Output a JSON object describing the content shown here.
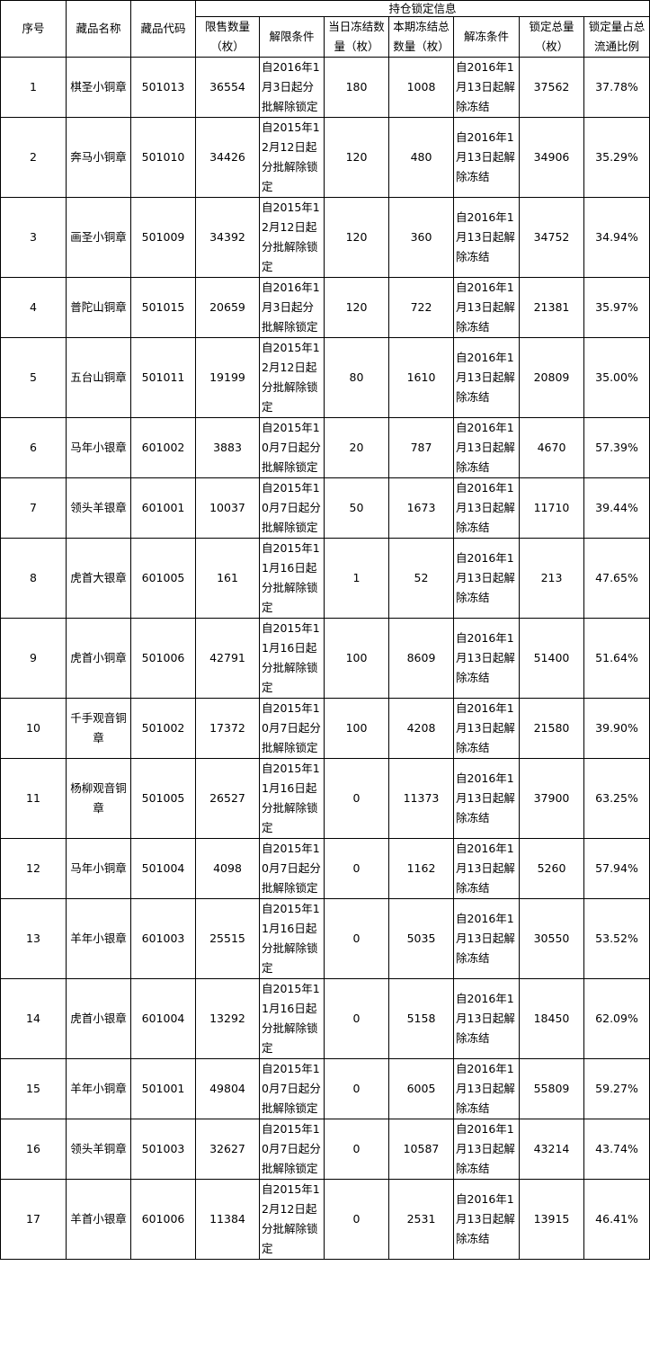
{
  "header": {
    "index": "序号",
    "name": "藏品名称",
    "code": "藏品代码",
    "group": "持仓锁定信息",
    "restricted_qty": "限售数量（枚）",
    "release_condition": "解限条件",
    "day_frozen": "当日冻结数量（枚）",
    "period_frozen": "本期冻结总数量（枚）",
    "unfreeze_condition": "解冻条件",
    "locked_total": "锁定总量（枚）",
    "locked_ratio": "锁定量占总流通比例"
  },
  "rows": [
    {
      "index": "1",
      "name": "棋圣小铜章",
      "code": "501013",
      "restricted_qty": "36554",
      "release_condition": "自2016年1月3日起分批解除锁定",
      "day_frozen": "180",
      "period_frozen": "1008",
      "unfreeze_condition": "自2016年1月13日起解除冻结",
      "locked_total": "37562",
      "locked_ratio": "37.78%"
    },
    {
      "index": "2",
      "name": "奔马小铜章",
      "code": "501010",
      "restricted_qty": "34426",
      "release_condition": "自2015年12月12日起分批解除锁定",
      "day_frozen": "120",
      "period_frozen": "480",
      "unfreeze_condition": "自2016年1月13日起解除冻结",
      "locked_total": "34906",
      "locked_ratio": "35.29%"
    },
    {
      "index": "3",
      "name": "画圣小铜章",
      "code": "501009",
      "restricted_qty": "34392",
      "release_condition": "自2015年12月12日起分批解除锁定",
      "day_frozen": "120",
      "period_frozen": "360",
      "unfreeze_condition": "自2016年1月13日起解除冻结",
      "locked_total": "34752",
      "locked_ratio": "34.94%"
    },
    {
      "index": "4",
      "name": "普陀山铜章",
      "code": "501015",
      "restricted_qty": "20659",
      "release_condition": "自2016年1月3日起分批解除锁定",
      "day_frozen": "120",
      "period_frozen": "722",
      "unfreeze_condition": "自2016年1月13日起解除冻结",
      "locked_total": "21381",
      "locked_ratio": "35.97%"
    },
    {
      "index": "5",
      "name": "五台山铜章",
      "code": "501011",
      "restricted_qty": "19199",
      "release_condition": "自2015年12月12日起分批解除锁定",
      "day_frozen": "80",
      "period_frozen": "1610",
      "unfreeze_condition": "自2016年1月13日起解除冻结",
      "locked_total": "20809",
      "locked_ratio": "35.00%"
    },
    {
      "index": "6",
      "name": "马年小银章",
      "code": "601002",
      "restricted_qty": "3883",
      "release_condition": "自2015年10月7日起分批解除锁定",
      "day_frozen": "20",
      "period_frozen": "787",
      "unfreeze_condition": "自2016年1月13日起解除冻结",
      "locked_total": "4670",
      "locked_ratio": "57.39%"
    },
    {
      "index": "7",
      "name": "领头羊银章",
      "code": "601001",
      "restricted_qty": "10037",
      "release_condition": "自2015年10月7日起分批解除锁定",
      "day_frozen": "50",
      "period_frozen": "1673",
      "unfreeze_condition": "自2016年1月13日起解除冻结",
      "locked_total": "11710",
      "locked_ratio": "39.44%"
    },
    {
      "index": "8",
      "name": "虎首大银章",
      "code": "601005",
      "restricted_qty": "161",
      "release_condition": "自2015年11月16日起分批解除锁定",
      "day_frozen": "1",
      "period_frozen": "52",
      "unfreeze_condition": "自2016年1月13日起解除冻结",
      "locked_total": "213",
      "locked_ratio": "47.65%"
    },
    {
      "index": "9",
      "name": "虎首小铜章",
      "code": "501006",
      "restricted_qty": "42791",
      "release_condition": "自2015年11月16日起分批解除锁定",
      "day_frozen": "100",
      "period_frozen": "8609",
      "unfreeze_condition": "自2016年1月13日起解除冻结",
      "locked_total": "51400",
      "locked_ratio": "51.64%"
    },
    {
      "index": "10",
      "name": "千手观音铜章",
      "code": "501002",
      "restricted_qty": "17372",
      "release_condition": "自2015年10月7日起分批解除锁定",
      "day_frozen": "100",
      "period_frozen": "4208",
      "unfreeze_condition": "自2016年1月13日起解除冻结",
      "locked_total": "21580",
      "locked_ratio": "39.90%"
    },
    {
      "index": "11",
      "name": "杨柳观音铜章",
      "code": "501005",
      "restricted_qty": "26527",
      "release_condition": "自2015年11月16日起分批解除锁定",
      "day_frozen": "0",
      "period_frozen": "11373",
      "unfreeze_condition": "自2016年1月13日起解除冻结",
      "locked_total": "37900",
      "locked_ratio": "63.25%"
    },
    {
      "index": "12",
      "name": "马年小铜章",
      "code": "501004",
      "restricted_qty": "4098",
      "release_condition": "自2015年10月7日起分批解除锁定",
      "day_frozen": "0",
      "period_frozen": "1162",
      "unfreeze_condition": "自2016年1月13日起解除冻结",
      "locked_total": "5260",
      "locked_ratio": "57.94%"
    },
    {
      "index": "13",
      "name": "羊年小银章",
      "code": "601003",
      "restricted_qty": "25515",
      "release_condition": "自2015年11月16日起分批解除锁定",
      "day_frozen": "0",
      "period_frozen": "5035",
      "unfreeze_condition": "自2016年1月13日起解除冻结",
      "locked_total": "30550",
      "locked_ratio": "53.52%"
    },
    {
      "index": "14",
      "name": "虎首小银章",
      "code": "601004",
      "restricted_qty": "13292",
      "release_condition": "自2015年11月16日起分批解除锁定",
      "day_frozen": "0",
      "period_frozen": "5158",
      "unfreeze_condition": "自2016年1月13日起解除冻结",
      "locked_total": "18450",
      "locked_ratio": "62.09%"
    },
    {
      "index": "15",
      "name": "羊年小铜章",
      "code": "501001",
      "restricted_qty": "49804",
      "release_condition": "自2015年10月7日起分批解除锁定",
      "day_frozen": "0",
      "period_frozen": "6005",
      "unfreeze_condition": "自2016年1月13日起解除冻结",
      "locked_total": "55809",
      "locked_ratio": "59.27%"
    },
    {
      "index": "16",
      "name": "领头羊铜章",
      "code": "501003",
      "restricted_qty": "32627",
      "release_condition": "自2015年10月7日起分批解除锁定",
      "day_frozen": "0",
      "period_frozen": "10587",
      "unfreeze_condition": "自2016年1月13日起解除冻结",
      "locked_total": "43214",
      "locked_ratio": "43.74%"
    },
    {
      "index": "17",
      "name": "羊首小银章",
      "code": "601006",
      "restricted_qty": "11384",
      "release_condition": "自2015年12月12日起分批解除锁定",
      "day_frozen": "0",
      "period_frozen": "2531",
      "unfreeze_condition": "自2016年1月13日起解除冻结",
      "locked_total": "13915",
      "locked_ratio": "46.41%"
    }
  ]
}
